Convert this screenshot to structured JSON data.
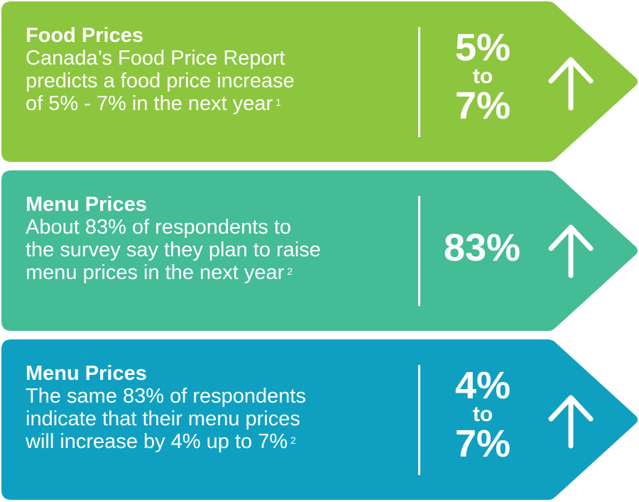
{
  "colors": {
    "card1": "#8cc63f",
    "card2": "#44bc96",
    "card3": "#0fa0c1",
    "text": "#ffffff"
  },
  "cards": [
    {
      "title": "Food Prices",
      "lines": [
        "Canada’s Food Price Report",
        "predicts a food price increase",
        "of 5% - 7% in the next year"
      ],
      "footnote": "1",
      "stat_from": "5%",
      "stat_connector": "to",
      "stat_to": "7%",
      "icon": "arrow-up-icon"
    },
    {
      "title": "Menu Prices",
      "lines": [
        "About 83% of respondents to",
        "the survey say they plan to raise",
        "menu prices in the next year"
      ],
      "footnote": "2",
      "stat": "83%",
      "icon": "arrow-up-icon"
    },
    {
      "title": "Menu Prices",
      "lines": [
        "The same 83% of respondents",
        "indicate that their menu prices",
        "will increase by 4% up to 7%"
      ],
      "footnote": "2",
      "stat_from": "4%",
      "stat_connector": "to",
      "stat_to": "7%",
      "icon": "arrow-up-icon"
    }
  ]
}
